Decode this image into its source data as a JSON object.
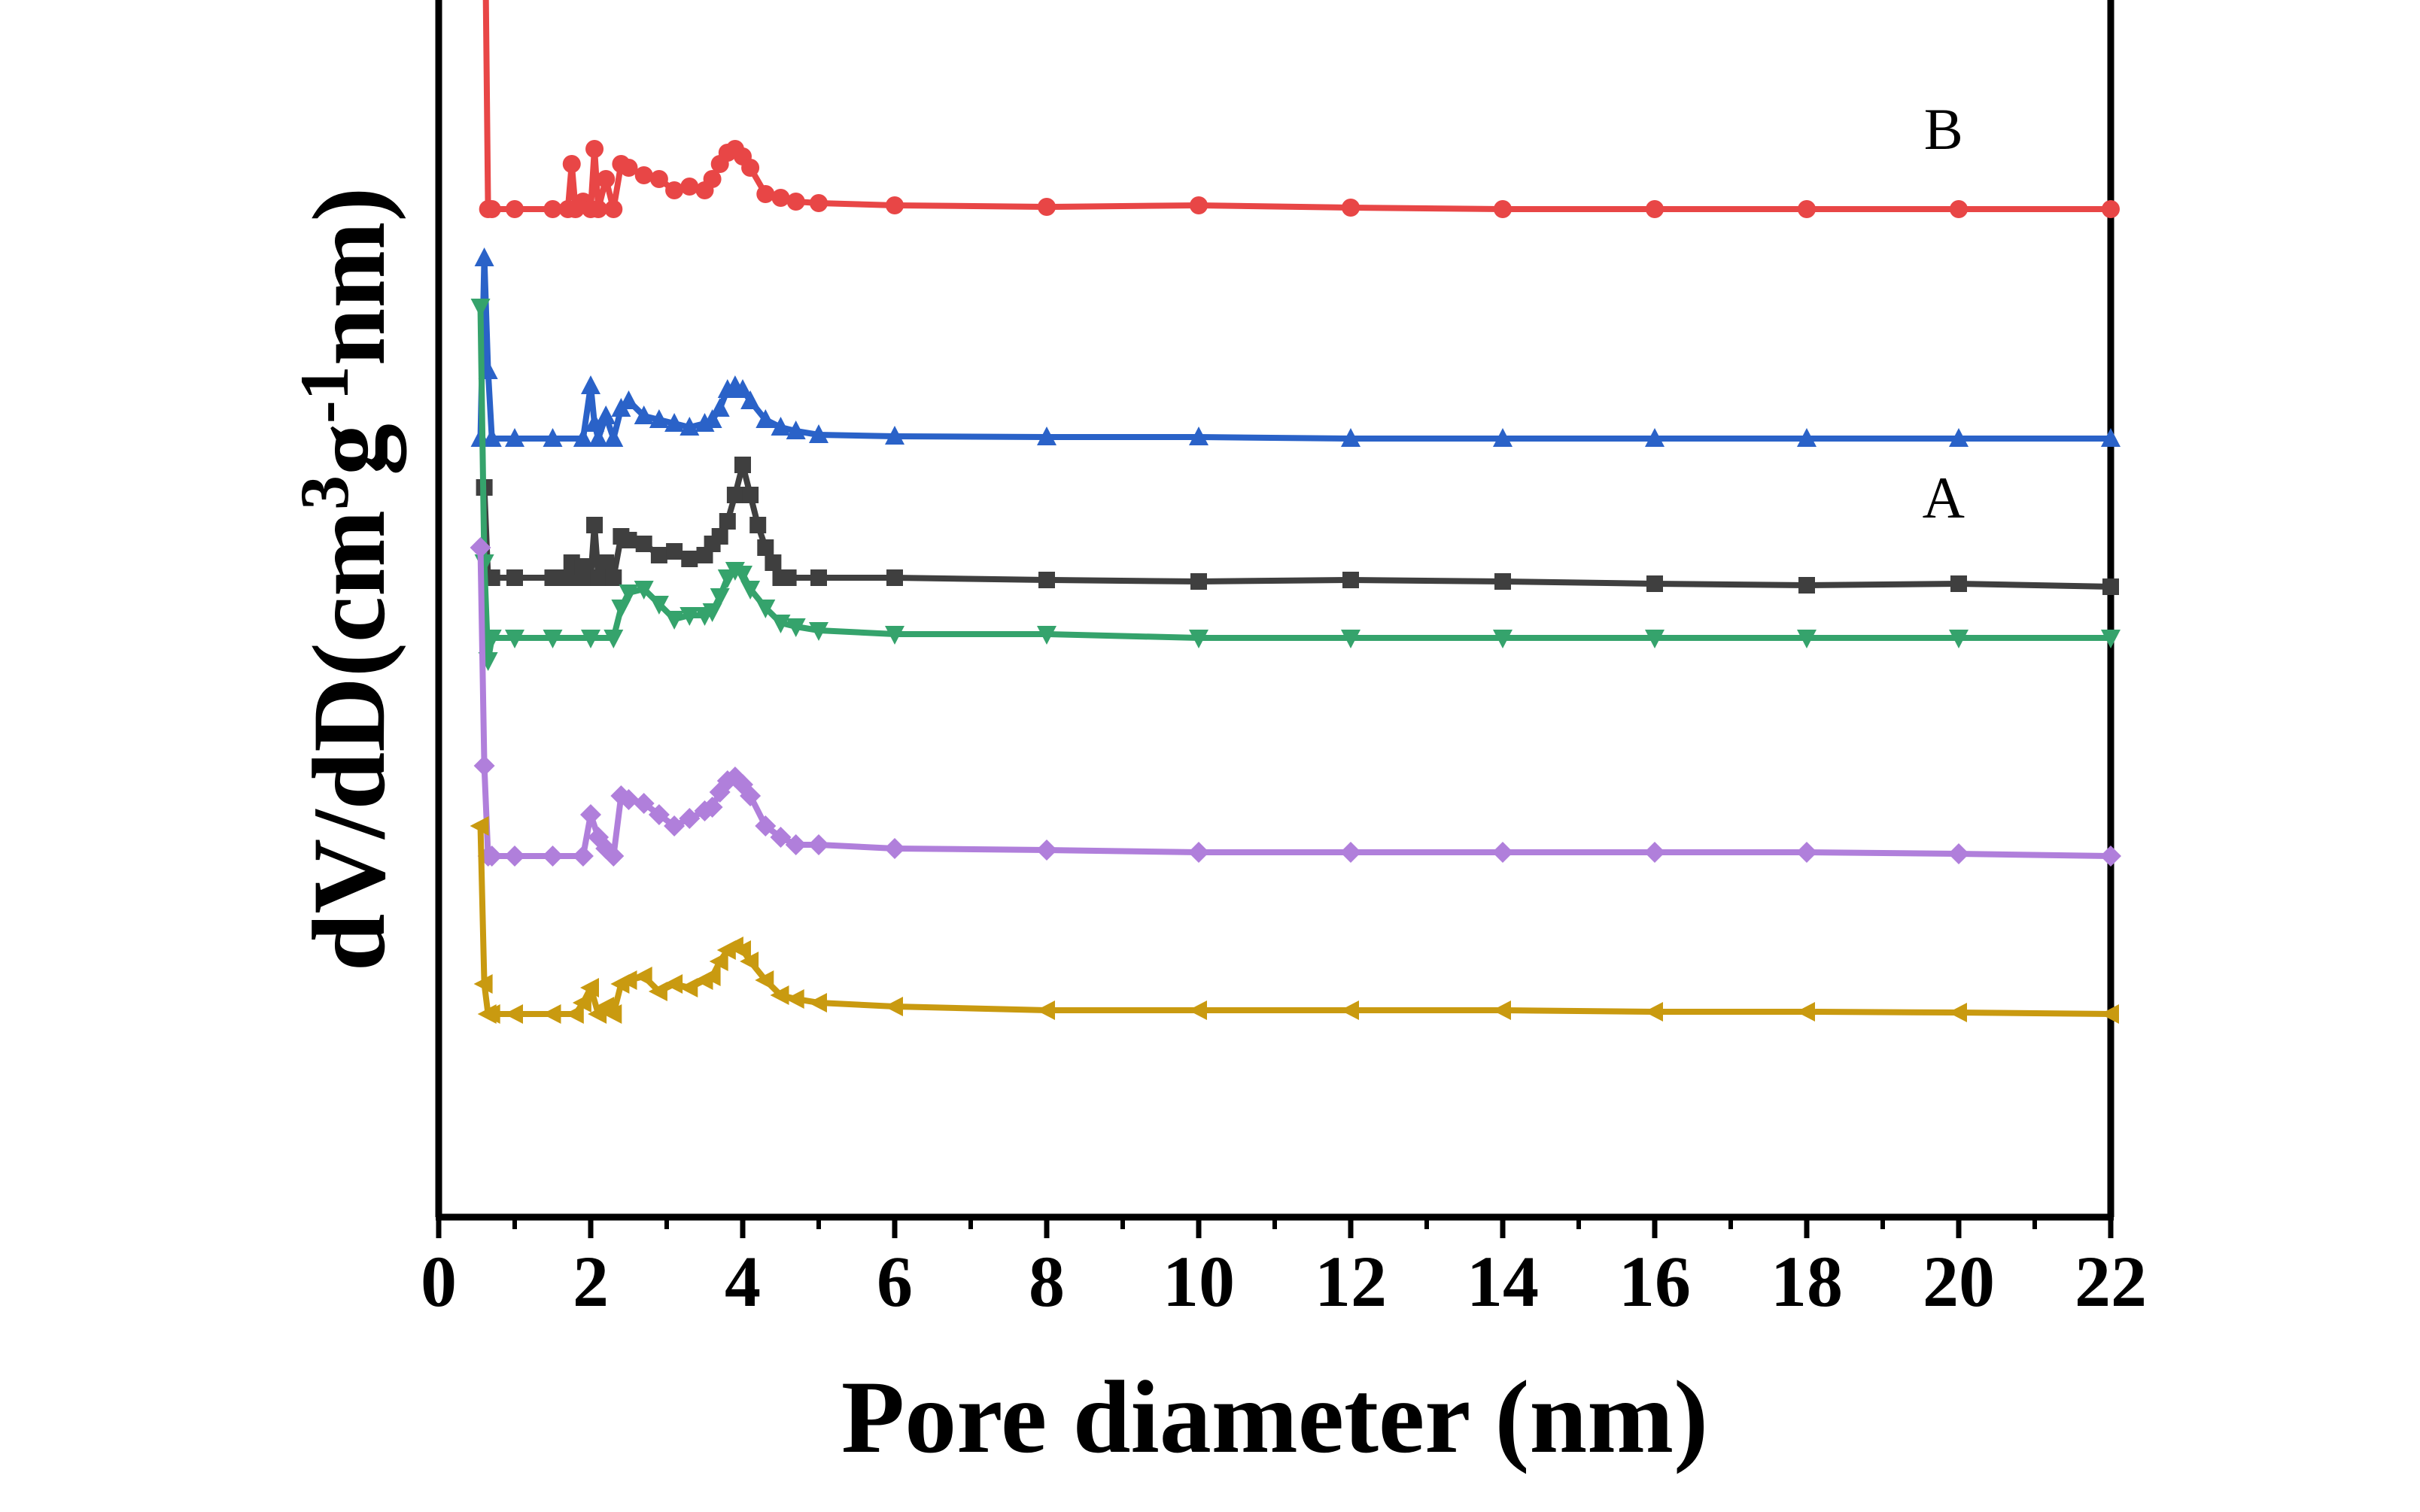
{
  "chart_data": {
    "type": "line",
    "title": "",
    "xlabel": "Pore diameter (nm)",
    "ylabel": {
      "main": "dV/dD(cm",
      "sup1": "3",
      "mid": "g",
      "sup2": "-1",
      "end": "nm)"
    },
    "xlim": [
      0,
      22
    ],
    "x_ticks": [
      0,
      2,
      4,
      6,
      8,
      10,
      12,
      14,
      16,
      18,
      20,
      22
    ],
    "y_tick_labels": false,
    "grid": false,
    "legend": "none",
    "annotations": [
      {
        "text": "A",
        "series": 0
      },
      {
        "text": "B",
        "series": 1
      }
    ],
    "series": [
      {
        "color": "#3f3f3f",
        "marker": "square",
        "offset": 850,
        "x": [
          0.6,
          0.65,
          0.7,
          1.0,
          1.5,
          1.7,
          1.75,
          1.8,
          1.9,
          2.0,
          2.05,
          2.1,
          2.2,
          2.3,
          2.4,
          2.5,
          2.7,
          2.9,
          3.1,
          3.3,
          3.5,
          3.6,
          3.7,
          3.8,
          3.9,
          4.0,
          4.1,
          4.2,
          4.3,
          4.4,
          4.5,
          4.6,
          5,
          6,
          8,
          10,
          12,
          14,
          16,
          18,
          20,
          22
        ],
        "y": [
          120,
          0,
          0,
          0,
          0,
          0,
          20,
          0,
          15,
          0,
          70,
          0,
          20,
          0,
          55,
          50,
          45,
          30,
          35,
          25,
          30,
          45,
          55,
          75,
          110,
          150,
          110,
          70,
          40,
          20,
          0,
          0,
          0,
          0,
          -3,
          -5,
          -3,
          -5,
          -8,
          -10,
          -8,
          -12
        ]
      },
      {
        "color": "#e84646",
        "marker": "circle",
        "offset": 1340,
        "x": [
          0.6,
          0.65,
          0.7,
          1.0,
          1.5,
          1.7,
          1.75,
          1.8,
          1.9,
          2.0,
          2.05,
          2.1,
          2.2,
          2.3,
          2.4,
          2.5,
          2.7,
          2.9,
          3.1,
          3.3,
          3.5,
          3.6,
          3.7,
          3.8,
          3.9,
          4.0,
          4.1,
          4.3,
          4.5,
          4.7,
          5,
          6,
          8,
          10,
          12,
          14,
          16,
          18,
          20,
          22
        ],
        "y": [
          480,
          0,
          0,
          0,
          0,
          0,
          60,
          0,
          10,
          0,
          80,
          0,
          40,
          0,
          60,
          55,
          45,
          40,
          25,
          30,
          25,
          40,
          60,
          75,
          80,
          70,
          55,
          20,
          15,
          10,
          8,
          5,
          3,
          5,
          2,
          0,
          0,
          0,
          0,
          0
        ]
      },
      {
        "color": "#2a62c8",
        "marker": "triangle-up",
        "offset": 1035,
        "x": [
          0.55,
          0.6,
          0.65,
          0.7,
          1.0,
          1.5,
          1.9,
          2.0,
          2.05,
          2.1,
          2.2,
          2.3,
          2.4,
          2.5,
          2.7,
          2.9,
          3.1,
          3.3,
          3.5,
          3.6,
          3.7,
          3.8,
          3.9,
          4.0,
          4.1,
          4.3,
          4.5,
          4.7,
          5,
          6,
          8,
          10,
          12,
          14,
          16,
          18,
          20,
          22
        ],
        "y": [
          0,
          240,
          90,
          0,
          0,
          0,
          0,
          70,
          20,
          0,
          30,
          0,
          40,
          50,
          30,
          25,
          20,
          15,
          20,
          25,
          40,
          65,
          70,
          65,
          50,
          25,
          15,
          10,
          5,
          3,
          2,
          2,
          0,
          0,
          0,
          0,
          0,
          0
        ]
      },
      {
        "color": "#35a36c",
        "marker": "triangle-down",
        "offset": 770,
        "x": [
          0.55,
          0.6,
          0.65,
          0.7,
          1.0,
          1.5,
          2.0,
          2.3,
          2.4,
          2.5,
          2.7,
          2.9,
          3.1,
          3.3,
          3.5,
          3.6,
          3.7,
          3.8,
          3.9,
          4.0,
          4.1,
          4.3,
          4.5,
          4.7,
          5,
          6,
          8,
          10,
          12,
          14,
          16,
          18,
          20,
          22
        ],
        "y": [
          440,
          100,
          -30,
          0,
          0,
          0,
          0,
          0,
          40,
          60,
          65,
          45,
          25,
          30,
          30,
          35,
          55,
          80,
          90,
          85,
          65,
          40,
          20,
          15,
          10,
          5,
          5,
          0,
          0,
          0,
          0,
          0,
          0,
          0
        ]
      },
      {
        "color": "#b07fdb",
        "marker": "diamond",
        "offset": 480,
        "x": [
          0.55,
          0.6,
          0.65,
          0.7,
          1.0,
          1.5,
          1.9,
          2.0,
          2.1,
          2.2,
          2.3,
          2.4,
          2.5,
          2.7,
          2.9,
          3.1,
          3.3,
          3.5,
          3.6,
          3.7,
          3.8,
          3.9,
          4.0,
          4.1,
          4.3,
          4.5,
          4.7,
          5,
          6,
          8,
          10,
          12,
          14,
          16,
          18,
          20,
          22
        ],
        "y": [
          410,
          120,
          0,
          0,
          0,
          0,
          0,
          55,
          25,
          10,
          0,
          80,
          75,
          70,
          55,
          40,
          50,
          60,
          65,
          85,
          100,
          105,
          95,
          80,
          40,
          25,
          15,
          15,
          10,
          8,
          5,
          5,
          5,
          5,
          5,
          3,
          0
        ]
      },
      {
        "color": "#c99a10",
        "marker": "triangle-left",
        "offset": 270,
        "x": [
          0.55,
          0.6,
          0.65,
          0.7,
          1.0,
          1.5,
          1.8,
          1.9,
          2.0,
          2.1,
          2.2,
          2.3,
          2.4,
          2.5,
          2.7,
          2.9,
          3.1,
          3.3,
          3.5,
          3.6,
          3.7,
          3.8,
          3.9,
          4.0,
          4.1,
          4.3,
          4.5,
          4.7,
          5,
          6,
          8,
          10,
          12,
          14,
          16,
          18,
          20,
          22
        ],
        "y": [
          250,
          40,
          0,
          0,
          0,
          0,
          0,
          15,
          35,
          0,
          10,
          0,
          40,
          45,
          50,
          30,
          40,
          35,
          45,
          50,
          70,
          85,
          90,
          85,
          70,
          45,
          25,
          20,
          15,
          10,
          5,
          5,
          5,
          5,
          3,
          3,
          2,
          0
        ]
      }
    ]
  }
}
